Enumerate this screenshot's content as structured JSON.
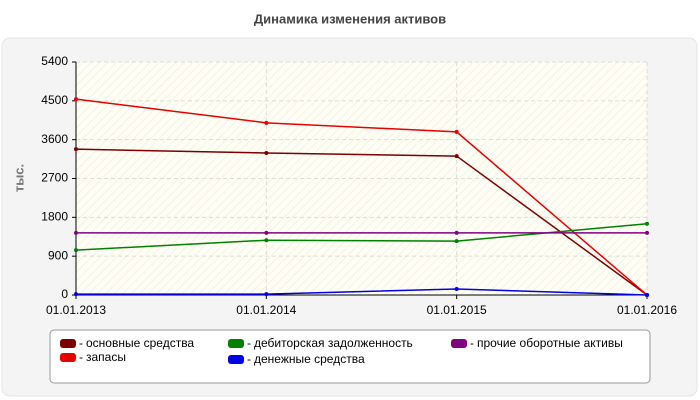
{
  "chart_data": {
    "type": "line",
    "title": "Динамика изменения активов",
    "y_label": "тыс.",
    "categories": [
      "01.01.2013",
      "01.01.2014",
      "01.01.2015",
      "01.01.2016"
    ],
    "series": [
      {
        "name": "основные средства",
        "color": "#7b0000",
        "values": [
          3380,
          3290,
          3220,
          0
        ]
      },
      {
        "name": "запасы",
        "color": "#e60000",
        "values": [
          4540,
          3990,
          3780,
          0
        ]
      },
      {
        "name": "дебиторская задолженность",
        "color": "#008000",
        "values": [
          1040,
          1270,
          1250,
          1650
        ]
      },
      {
        "name": "денежные средства",
        "color": "#0000e6",
        "values": [
          20,
          20,
          140,
          0
        ]
      },
      {
        "name": "прочие оборотные активы",
        "color": "#800080",
        "values": [
          1440,
          1440,
          1440,
          1440
        ]
      }
    ],
    "ylim": [
      0,
      5400
    ],
    "yticks": [
      0,
      900,
      1800,
      2700,
      3600,
      4500,
      5400
    ],
    "grid": true
  }
}
